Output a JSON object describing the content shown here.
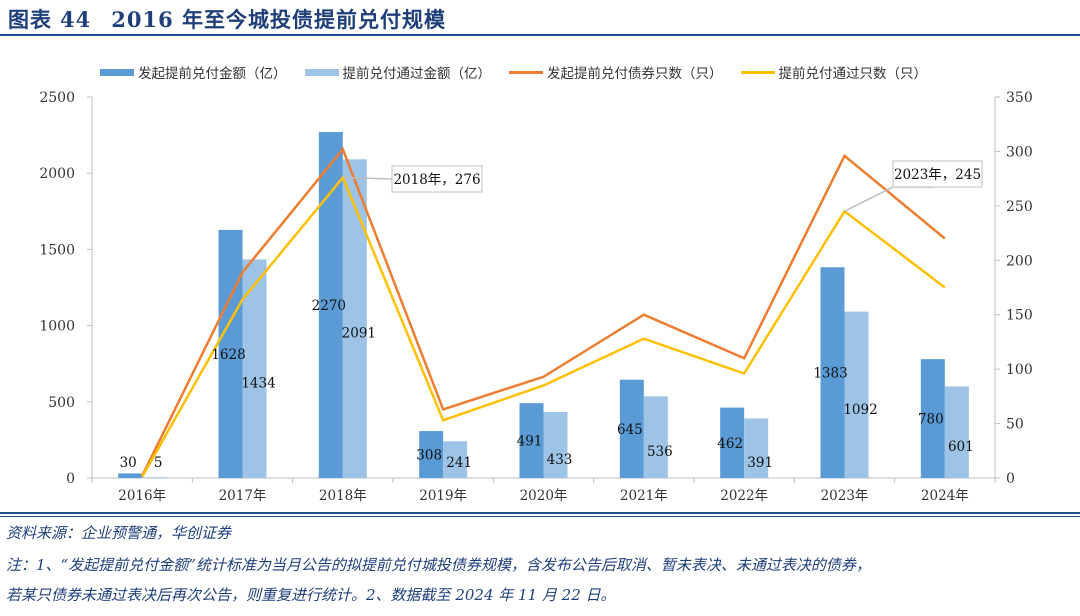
{
  "title": {
    "label": "图表",
    "number": "44",
    "text": "2016 年至今城投债提前兑付规模"
  },
  "colors": {
    "bar1": "#5b9bd5",
    "bar2": "#9dc3e6",
    "line1": "#ed7d31",
    "line2": "#ffc000",
    "title": "#1f3f7a"
  },
  "chart_data": {
    "type": "bar+line",
    "categories": [
      "2016年",
      "2017年",
      "2018年",
      "2019年",
      "2020年",
      "2021年",
      "2022年",
      "2023年",
      "2024年"
    ],
    "series": [
      {
        "name": "发起提前兑付金额（亿）",
        "type": "bar",
        "axis": "left",
        "values": [
          30,
          1628,
          2270,
          308,
          491,
          645,
          462,
          1383,
          780
        ]
      },
      {
        "name": "提前兑付通过金额（亿）",
        "type": "bar",
        "axis": "left",
        "values": [
          5,
          1434,
          2091,
          241,
          433,
          536,
          391,
          1092,
          601
        ]
      },
      {
        "name": "发起提前兑付债券只数（只）",
        "type": "line",
        "axis": "right",
        "values": [
          2,
          189,
          302,
          63,
          93,
          150,
          110,
          296,
          220
        ]
      },
      {
        "name": "提前兑付通过只数（只）",
        "type": "line",
        "axis": "right",
        "values": [
          1,
          164,
          276,
          53,
          85,
          128,
          96,
          245,
          175
        ]
      }
    ],
    "left_axis": {
      "ylim": [
        0,
        2500
      ],
      "ticks": [
        "0",
        "500",
        "1000",
        "1500",
        "2000",
        "2500"
      ]
    },
    "right_axis": {
      "ylim": [
        0,
        350
      ],
      "ticks": [
        "0",
        "50",
        "100",
        "150",
        "200",
        "250",
        "300",
        "350"
      ]
    },
    "annotations": [
      "2018年，276",
      "2023年，245"
    ],
    "legend_position": "top",
    "grid": false
  },
  "footer": {
    "source": "资料来源：企业预警通，华创证券",
    "note_line1": "注：1、“发起提前兑付金额”统计标准为当月公告的拟提前兑付城投债券规模，含发布公告后取消、暂未表决、未通过表决的债券，",
    "note_line2": "若某只债券未通过表决后再次公告，则重复进行统计。2、数据截至 2024 年 11 月 22 日。"
  }
}
